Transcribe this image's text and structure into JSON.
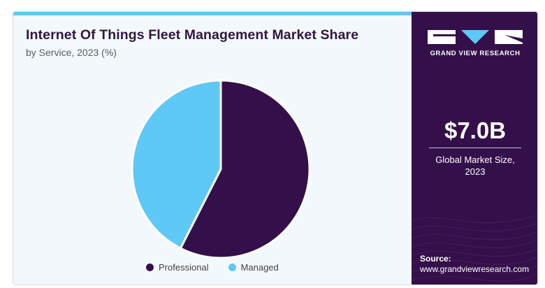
{
  "chart": {
    "title": "Internet Of Things Fleet Management Market Share",
    "subtitle": "by Service, 2023 (%)"
  },
  "chart_data": {
    "type": "pie",
    "categories": [
      "Professional",
      "Managed"
    ],
    "values": [
      57.5,
      42.5
    ],
    "colors": [
      "#34104a",
      "#5ec8f6"
    ],
    "legend_position": "bottom"
  },
  "brand": {
    "name": "GRAND VIEW RESEARCH"
  },
  "stat": {
    "value": "$7.0B",
    "label_line1": "Global Market Size,",
    "label_line2": "2023"
  },
  "source": {
    "label": "Source:",
    "url": "www.grandviewresearch.com"
  }
}
